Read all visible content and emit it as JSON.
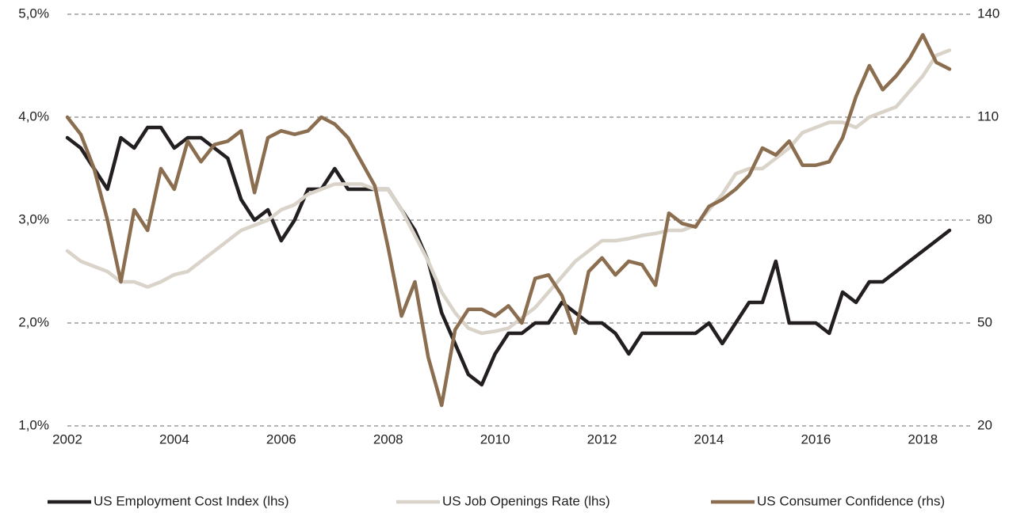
{
  "chart_data": {
    "type": "line",
    "x": [
      2002,
      2002.25,
      2002.5,
      2002.75,
      2003,
      2003.25,
      2003.5,
      2003.75,
      2004,
      2004.25,
      2004.5,
      2004.75,
      2005,
      2005.25,
      2005.5,
      2005.75,
      2006,
      2006.25,
      2006.5,
      2006.75,
      2007,
      2007.25,
      2007.5,
      2007.75,
      2008,
      2008.25,
      2008.5,
      2008.75,
      2009,
      2009.25,
      2009.5,
      2009.75,
      2010,
      2010.25,
      2010.5,
      2010.75,
      2011,
      2011.25,
      2011.5,
      2011.75,
      2012,
      2012.25,
      2012.5,
      2012.75,
      2013,
      2013.25,
      2013.5,
      2013.75,
      2014,
      2014.25,
      2014.5,
      2014.75,
      2015,
      2015.25,
      2015.5,
      2015.75,
      2016,
      2016.25,
      2016.5,
      2016.75,
      2017,
      2017.25,
      2017.5,
      2017.75,
      2018,
      2018.25,
      2018.5
    ],
    "series": [
      {
        "name": "US Employment Cost Index (lhs)",
        "color": "#231f20",
        "values": [
          3.8,
          3.7,
          3.5,
          3.3,
          3.8,
          3.7,
          3.9,
          3.9,
          3.7,
          3.8,
          3.8,
          3.7,
          3.6,
          3.2,
          3.0,
          3.1,
          2.8,
          3.0,
          3.3,
          3.3,
          3.5,
          3.3,
          3.3,
          3.3,
          3.3,
          3.1,
          2.9,
          2.6,
          2.1,
          1.8,
          1.5,
          1.4,
          1.7,
          1.9,
          1.9,
          2.0,
          2.0,
          2.2,
          2.1,
          2.0,
          2.0,
          1.9,
          1.7,
          1.9,
          1.9,
          1.9,
          1.9,
          1.9,
          2.0,
          1.8,
          2.0,
          2.2,
          2.2,
          2.6,
          2.0,
          2.0,
          2.0,
          1.9,
          2.3,
          2.2,
          2.4,
          2.4,
          2.5,
          2.6,
          2.7,
          2.8,
          2.9
        ]
      },
      {
        "name": "US Job Openings Rate (lhs)",
        "color": "#d9d3c9",
        "values": [
          2.7,
          2.6,
          2.55,
          2.5,
          2.4,
          2.4,
          2.35,
          2.4,
          2.47,
          2.5,
          2.6,
          2.7,
          2.8,
          2.9,
          2.95,
          3.0,
          3.1,
          3.15,
          3.25,
          3.3,
          3.35,
          3.35,
          3.35,
          3.3,
          3.3,
          3.1,
          2.85,
          2.6,
          2.3,
          2.1,
          1.95,
          1.9,
          1.92,
          1.95,
          2.05,
          2.15,
          2.3,
          2.45,
          2.6,
          2.7,
          2.8,
          2.8,
          2.82,
          2.85,
          2.87,
          2.9,
          2.9,
          2.95,
          3.1,
          3.25,
          3.45,
          3.5,
          3.5,
          3.6,
          3.7,
          3.85,
          3.9,
          3.95,
          3.95,
          3.9,
          4.0,
          4.05,
          4.1,
          4.25,
          4.4,
          4.6,
          4.65
        ]
      },
      {
        "name": "US Consumer Confidence (rhs)",
        "color": "#8b6d4f",
        "axis": "y2",
        "values": [
          110,
          105,
          95,
          80,
          62,
          83,
          77,
          95,
          89,
          103,
          97,
          102,
          103,
          106,
          88,
          104,
          106,
          105,
          106,
          110,
          108,
          104,
          97,
          90,
          72,
          52,
          62,
          40,
          26,
          48,
          54,
          54,
          52,
          55,
          50,
          63,
          64,
          58,
          47,
          65,
          69,
          64,
          68,
          67,
          61,
          82,
          79,
          78,
          84,
          86,
          89,
          93,
          101,
          99,
          103,
          96,
          96,
          97,
          104,
          116,
          125,
          118,
          122,
          127,
          134,
          126,
          124
        ]
      }
    ],
    "xlim": [
      2002,
      2018.9
    ],
    "xticks": [
      2002,
      2004,
      2006,
      2008,
      2010,
      2012,
      2014,
      2016,
      2018
    ],
    "ylim": [
      1,
      5
    ],
    "yticks": [
      {
        "value": 1,
        "label": "1,0%"
      },
      {
        "value": 2,
        "label": "2,0%"
      },
      {
        "value": 3,
        "label": "3,0%"
      },
      {
        "value": 4,
        "label": "4,0%"
      },
      {
        "value": 5,
        "label": "5,0%"
      }
    ],
    "y2lim": [
      20,
      140
    ],
    "y2ticks": [
      20,
      50,
      80,
      110,
      140
    ],
    "grid": true,
    "legend": "bottom"
  }
}
